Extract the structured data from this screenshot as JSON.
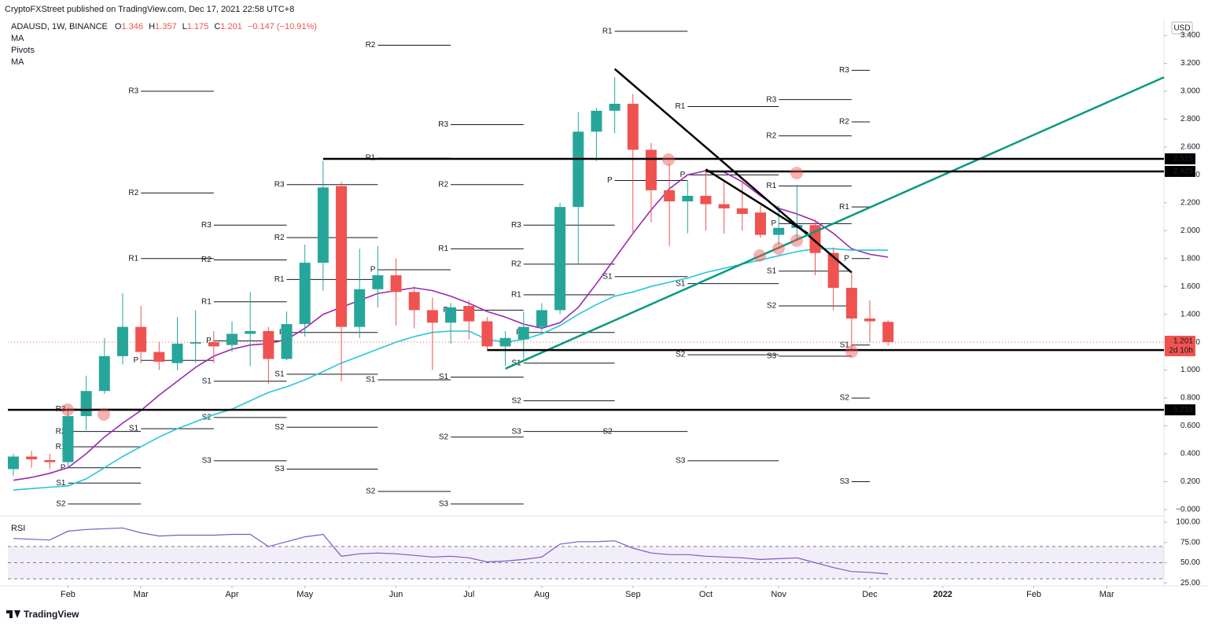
{
  "header": {
    "publisher": "CryptoFXStreet published on TradingView.com, Dec 17, 2021 22:58 UTC+8",
    "symbol": "ADAUSD, 1W, BINANCE",
    "ohlc_keys": [
      "O",
      "H",
      "L",
      "C"
    ],
    "change": "−0.147 (−10.91%)"
  },
  "footer": {
    "logo": "TradingView"
  },
  "chart_data": {
    "type": "candlestick",
    "currency": "USD",
    "countdown": "2d 10h",
    "pivot_title": "Pivots",
    "up_color": "#26a69a",
    "down_color": "#ef5350",
    "grid": false,
    "open": [
      0.29,
      0.38,
      0.355,
      0.34,
      0.67,
      0.85,
      1.1,
      1.31,
      1.13,
      1.05,
      1.19,
      1.2,
      1.18,
      1.26,
      1.28,
      1.08,
      1.33,
      1.77,
      2.32,
      1.31,
      1.58,
      1.68,
      1.56,
      1.43,
      1.34,
      1.46,
      1.35,
      1.17,
      1.22,
      1.31,
      1.43,
      2.17,
      2.71,
      2.86,
      2.91,
      2.58,
      2.29,
      2.21,
      2.25,
      2.19,
      2.16,
      2.13,
      1.97,
      2.02,
      2.04,
      1.84,
      1.59,
      1.37,
      1.346
    ],
    "high": [
      0.4,
      0.42,
      0.4,
      0.73,
      0.96,
      1.23,
      1.55,
      1.46,
      1.2,
      1.38,
      1.43,
      1.28,
      1.35,
      1.56,
      1.31,
      1.42,
      1.9,
      2.5,
      2.35,
      1.87,
      1.89,
      1.8,
      1.6,
      1.52,
      1.48,
      1.5,
      1.38,
      1.28,
      1.42,
      1.48,
      2.2,
      2.85,
      2.88,
      3.1,
      2.98,
      2.63,
      2.48,
      2.36,
      2.42,
      2.35,
      2.36,
      2.18,
      2.18,
      2.33,
      2.08,
      1.88,
      1.7,
      1.5,
      1.357
    ],
    "low": [
      0.24,
      0.3,
      0.29,
      0.3,
      0.57,
      0.83,
      1.04,
      1.05,
      1.0,
      1.0,
      1.05,
      1.05,
      1.13,
      1.03,
      0.9,
      1.07,
      1.24,
      1.57,
      0.92,
      1.23,
      1.45,
      1.32,
      1.3,
      1.0,
      1.19,
      1.22,
      1.15,
      1.03,
      1.08,
      1.28,
      1.4,
      1.76,
      2.5,
      2.7,
      1.97,
      2.06,
      1.89,
      1.98,
      2.0,
      1.98,
      2.0,
      1.95,
      1.9,
      1.93,
      1.68,
      1.43,
      1.15,
      1.2,
      1.175
    ],
    "close": [
      0.38,
      0.36,
      0.34,
      0.67,
      0.85,
      1.1,
      1.31,
      1.13,
      1.06,
      1.19,
      1.2,
      1.17,
      1.26,
      1.28,
      1.08,
      1.33,
      1.77,
      2.31,
      1.31,
      1.58,
      1.68,
      1.56,
      1.43,
      1.34,
      1.45,
      1.35,
      1.17,
      1.23,
      1.31,
      1.43,
      2.17,
      2.71,
      2.86,
      2.91,
      2.58,
      2.29,
      2.21,
      2.25,
      2.19,
      2.16,
      2.12,
      1.97,
      2.02,
      2.04,
      1.84,
      1.59,
      1.37,
      1.35,
      1.201
    ],
    "series": [
      {
        "name": "MA",
        "color": "#9c27b0",
        "values": [
          0.21,
          0.23,
          0.26,
          0.3,
          0.4,
          0.52,
          0.62,
          0.71,
          0.82,
          0.92,
          1.02,
          1.1,
          1.15,
          1.18,
          1.19,
          1.22,
          1.3,
          1.4,
          1.45,
          1.5,
          1.55,
          1.57,
          1.59,
          1.57,
          1.53,
          1.48,
          1.42,
          1.38,
          1.33,
          1.3,
          1.34,
          1.45,
          1.62,
          1.8,
          1.98,
          2.15,
          2.3,
          2.4,
          2.43,
          2.42,
          2.35,
          2.25,
          2.16,
          2.12,
          2.07,
          1.98,
          1.87,
          1.83,
          1.81
        ]
      },
      {
        "name": "MA",
        "color": "#26c6da",
        "values": [
          0.14,
          0.15,
          0.16,
          0.17,
          0.22,
          0.3,
          0.38,
          0.45,
          0.52,
          0.58,
          0.63,
          0.68,
          0.72,
          0.78,
          0.84,
          0.88,
          0.93,
          0.99,
          1.05,
          1.1,
          1.15,
          1.2,
          1.24,
          1.27,
          1.28,
          1.28,
          1.22,
          1.2,
          1.22,
          1.26,
          1.32,
          1.4,
          1.47,
          1.53,
          1.56,
          1.6,
          1.63,
          1.66,
          1.7,
          1.73,
          1.76,
          1.79,
          1.82,
          1.85,
          1.87,
          1.87,
          1.86,
          1.86,
          1.86
        ]
      }
    ],
    "xlim": [
      -0.3,
      63.14
    ],
    "xticks": [
      {
        "value": 3,
        "label": "Feb"
      },
      {
        "value": 7,
        "label": "Mar"
      },
      {
        "value": 12,
        "label": "Apr"
      },
      {
        "value": 16,
        "label": "May"
      },
      {
        "value": 21,
        "label": "Jun"
      },
      {
        "value": 25,
        "label": "Jul"
      },
      {
        "value": 29,
        "label": "Aug"
      },
      {
        "value": 34,
        "label": "Sep"
      },
      {
        "value": 38,
        "label": "Oct"
      },
      {
        "value": 42,
        "label": "Nov"
      },
      {
        "value": 47,
        "label": "Dec"
      },
      {
        "value": 51,
        "label": "2022"
      },
      {
        "value": 56,
        "label": "Feb"
      },
      {
        "value": 60,
        "label": "Mar"
      }
    ],
    "ylim": [
      -0.04,
      3.485
    ],
    "yticks": [
      {
        "value": 3.4,
        "label": "3.400"
      },
      {
        "value": 3.2,
        "label": "3.200"
      },
      {
        "value": 3.0,
        "label": "3.000"
      },
      {
        "value": 2.8,
        "label": "2.800"
      },
      {
        "value": 2.6,
        "label": "2.600"
      },
      {
        "value": 2.4,
        "label": "2.400"
      },
      {
        "value": 2.2,
        "label": "2.200"
      },
      {
        "value": 2.0,
        "label": "2.000"
      },
      {
        "value": 1.8,
        "label": "1.800"
      },
      {
        "value": 1.6,
        "label": "1.600"
      },
      {
        "value": 1.4,
        "label": "1.400"
      },
      {
        "value": 1.2,
        "label": "1.200"
      },
      {
        "value": 1.0,
        "label": "1.000"
      },
      {
        "value": 0.8,
        "label": "0.800"
      },
      {
        "value": 0.6,
        "label": "0.600"
      },
      {
        "value": 0.4,
        "label": "0.400"
      },
      {
        "value": 0.2,
        "label": "0.200"
      },
      {
        "value": 0,
        "label": "−0.000"
      }
    ],
    "levels": [
      {
        "value": 2.515,
        "x_start": 17
      },
      {
        "value": 2.425,
        "x_start": 38
      },
      {
        "value": 1.144,
        "x_start": 26
      },
      {
        "value": 0.715,
        "x_start": -0.3
      }
    ],
    "trend_lines": [
      {
        "x": [
          33,
          46
        ],
        "values": [
          3.16,
          1.7
        ],
        "color": "#000000"
      },
      {
        "x": [
          38,
          43.6
        ],
        "values": [
          2.44,
          1.98
        ],
        "color": "#000000"
      },
      {
        "x": [
          27,
          63.14
        ],
        "values": [
          1.01,
          3.1
        ],
        "color": "#089981"
      }
    ],
    "pivots": [
      {
        "x": [
          3,
          7
        ],
        "levels": [
          {
            "label": "R3",
            "value": 0.72
          },
          {
            "label": "R2",
            "value": 0.56
          },
          {
            "label": "R1",
            "value": 0.45
          },
          {
            "label": "P",
            "value": 0.3
          },
          {
            "label": "S1",
            "value": 0.19
          },
          {
            "label": "S2",
            "value": 0.04
          }
        ]
      },
      {
        "x": [
          7,
          11
        ],
        "levels": [
          {
            "label": "R3",
            "value": 3.0
          },
          {
            "label": "R2",
            "value": 2.27
          },
          {
            "label": "R1",
            "value": 1.8
          },
          {
            "label": "P",
            "value": 1.07
          },
          {
            "label": "S1",
            "value": 0.58
          }
        ]
      },
      {
        "x": [
          11,
          15
        ],
        "levels": [
          {
            "label": "R3",
            "value": 2.04
          },
          {
            "label": "R2",
            "value": 1.79
          },
          {
            "label": "R1",
            "value": 1.49
          },
          {
            "label": "P",
            "value": 1.21
          },
          {
            "label": "S1",
            "value": 0.92
          },
          {
            "label": "S2",
            "value": 0.66
          },
          {
            "label": "S3",
            "value": 0.35
          }
        ]
      },
      {
        "x": [
          15,
          20
        ],
        "levels": [
          {
            "label": "R3",
            "value": 2.33
          },
          {
            "label": "R2",
            "value": 1.95
          },
          {
            "label": "R1",
            "value": 1.65
          },
          {
            "label": "P",
            "value": 1.27
          },
          {
            "label": "S1",
            "value": 0.97
          },
          {
            "label": "S2",
            "value": 0.59
          },
          {
            "label": "S3",
            "value": 0.29
          }
        ]
      },
      {
        "x": [
          20,
          24
        ],
        "levels": [
          {
            "label": "R2",
            "value": 3.33
          },
          {
            "label": "R1",
            "value": 2.52
          },
          {
            "label": "P",
            "value": 1.72
          },
          {
            "label": "S1",
            "value": 0.93
          },
          {
            "label": "S2",
            "value": 0.13
          }
        ]
      },
      {
        "x": [
          24,
          28
        ],
        "levels": [
          {
            "label": "R3",
            "value": 2.76
          },
          {
            "label": "R2",
            "value": 2.33
          },
          {
            "label": "R1",
            "value": 1.87
          },
          {
            "label": "P",
            "value": 1.43
          },
          {
            "label": "S1",
            "value": 0.95
          },
          {
            "label": "S2",
            "value": 0.52
          },
          {
            "label": "S3",
            "value": 0.04
          }
        ]
      },
      {
        "x": [
          28,
          33
        ],
        "levels": [
          {
            "label": "R3",
            "value": 2.04
          },
          {
            "label": "R2",
            "value": 1.76
          },
          {
            "label": "R1",
            "value": 1.54
          },
          {
            "label": "P",
            "value": 1.27
          },
          {
            "label": "S1",
            "value": 1.05
          },
          {
            "label": "S2",
            "value": 0.78
          },
          {
            "label": "S3",
            "value": 0.56
          }
        ]
      },
      {
        "x": [
          33,
          37
        ],
        "levels": [
          {
            "label": "R1",
            "value": 3.43
          },
          {
            "label": "P",
            "value": 2.36
          },
          {
            "label": "S1",
            "value": 1.67
          },
          {
            "label": "S2",
            "value": 0.56
          }
        ]
      },
      {
        "x": [
          37,
          42
        ],
        "levels": [
          {
            "label": "R1",
            "value": 2.89
          },
          {
            "label": "P",
            "value": 2.4
          },
          {
            "label": "S1",
            "value": 1.62
          },
          {
            "label": "S2",
            "value": 1.11
          },
          {
            "label": "S3",
            "value": 0.35
          }
        ]
      },
      {
        "x": [
          42,
          46
        ],
        "levels": [
          {
            "label": "R3",
            "value": 2.94
          },
          {
            "label": "R2",
            "value": 2.68
          },
          {
            "label": "R1",
            "value": 2.32
          },
          {
            "label": "P",
            "value": 2.05
          },
          {
            "label": "S1",
            "value": 1.71
          },
          {
            "label": "S2",
            "value": 1.46
          },
          {
            "label": "S3",
            "value": 1.1
          }
        ]
      },
      {
        "x": [
          46,
          47
        ],
        "levels": [
          {
            "label": "R3",
            "value": 3.15
          },
          {
            "label": "R2",
            "value": 2.78
          },
          {
            "label": "R1",
            "value": 2.17
          },
          {
            "label": "P",
            "value": 1.8
          },
          {
            "label": "S1",
            "value": 1.18
          },
          {
            "label": "S2",
            "value": 0.8
          },
          {
            "label": "S3",
            "value": 0.2
          }
        ]
      }
    ],
    "rsi": {
      "title": "RSI",
      "color": "#7e57c2",
      "ylim": [
        21.3,
        106.9
      ],
      "bands": [
        70,
        50,
        30
      ],
      "yticks": [
        {
          "value": 100,
          "label": "100.00"
        },
        {
          "value": 75,
          "label": "75.00"
        },
        {
          "value": 50,
          "label": "50.00"
        },
        {
          "value": 25,
          "label": "25.00"
        }
      ],
      "values": [
        80,
        79,
        78,
        89,
        91,
        92,
        93,
        87,
        83,
        84,
        84,
        84,
        85,
        85,
        70,
        76,
        82,
        85,
        58,
        61,
        62,
        61,
        59,
        57,
        58,
        56,
        51,
        52,
        54,
        57,
        73,
        76,
        76,
        77,
        68,
        62,
        60,
        60,
        58,
        57,
        56,
        54,
        55,
        56,
        50,
        44,
        39,
        38,
        36
      ]
    }
  }
}
